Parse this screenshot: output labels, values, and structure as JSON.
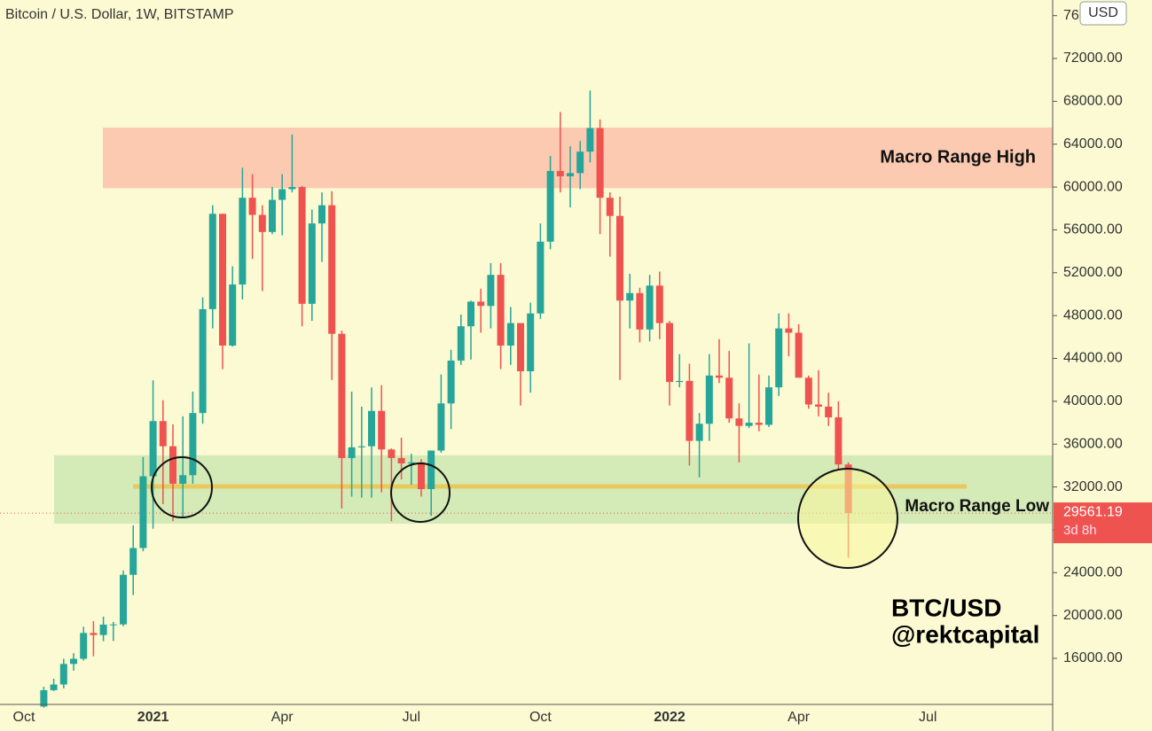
{
  "chart_data": {
    "type": "candlestick",
    "title": "Bitcoin / U.S. Dollar, 1W, BITSTAMP",
    "currency": "USD",
    "categories": [
      "Oct",
      null,
      null,
      null,
      null,
      null,
      null,
      null,
      null,
      null,
      null,
      null,
      null,
      "2021",
      null,
      null,
      null,
      null,
      null,
      null,
      null,
      null,
      null,
      null,
      null,
      null,
      "Apr",
      null,
      null,
      null,
      null,
      null,
      null,
      null,
      null,
      null,
      null,
      null,
      null,
      "Jul",
      null,
      null,
      null,
      null,
      null,
      null,
      null,
      null,
      null,
      null,
      null,
      null,
      "Oct",
      null,
      null,
      null,
      null,
      null,
      null,
      null,
      null,
      null,
      null,
      null,
      null,
      "2022",
      null,
      null,
      null,
      null,
      null,
      null,
      null,
      null,
      null,
      null,
      null,
      null,
      "Apr",
      null,
      null,
      null,
      null,
      null,
      null,
      null,
      null,
      null,
      null,
      null,
      null,
      "Jul"
    ],
    "open": [
      null,
      null,
      11500,
      13030,
      13560,
      15480,
      15960,
      18370,
      18180,
      19150,
      19170,
      23800,
      26300,
      33000,
      38150,
      35800,
      32300,
      33100,
      38900,
      48600,
      57500,
      45200,
      50900,
      59000,
      57400,
      55800,
      58800,
      59800,
      60000,
      49100,
      56600,
      58300,
      46300,
      34700,
      35700,
      35800,
      39100,
      35500,
      34700,
      34200,
      34300,
      31800,
      35400,
      39800,
      43800,
      47000,
      49300,
      48900,
      51800,
      45200,
      47300,
      42800,
      48200,
      54900,
      61500,
      61000,
      61300,
      63300,
      65500,
      59000,
      57300,
      49400,
      50100,
      46700,
      50800,
      47300,
      41800,
      41900,
      36300,
      37900,
      42400,
      42200,
      38400,
      37700,
      38000,
      37800,
      41300,
      46800,
      46400,
      42200,
      39700,
      39500,
      38500,
      34100,
      null,
      null,
      null,
      null,
      null,
      null,
      null,
      null
    ],
    "high": [
      null,
      null,
      13350,
      14100,
      15960,
      16480,
      18950,
      19480,
      19900,
      19400,
      24200,
      28400,
      34800,
      41950,
      40100,
      37850,
      38600,
      40900,
      49700,
      58300,
      57500,
      52600,
      61800,
      61200,
      58300,
      60000,
      61200,
      64900,
      60100,
      57900,
      59500,
      59600,
      46600,
      40900,
      39500,
      41300,
      41500,
      35600,
      36600,
      35100,
      34600,
      35400,
      42500,
      44800,
      48100,
      49400,
      50500,
      52900,
      52900,
      48800,
      47300,
      49200,
      56600,
      62900,
      67000,
      63800,
      64300,
      69000,
      66300,
      59500,
      59100,
      51900,
      50600,
      51800,
      52100,
      47500,
      44400,
      43500,
      38900,
      44400,
      45800,
      44700,
      39800,
      45400,
      42500,
      42400,
      48200,
      48200,
      47200,
      42400,
      42900,
      40800,
      40000,
      34300,
      null,
      null,
      null,
      null,
      null,
      null,
      null,
      null
    ],
    "low": [
      null,
      null,
      11400,
      12950,
      13200,
      14850,
      15800,
      16200,
      17600,
      17620,
      19000,
      21900,
      26000,
      28100,
      30400,
      28800,
      29200,
      32300,
      37900,
      46800,
      43000,
      45100,
      49500,
      53300,
      50300,
      55600,
      55500,
      59500,
      47000,
      47500,
      53000,
      42000,
      30000,
      31100,
      31000,
      31000,
      31500,
      28800,
      32700,
      32200,
      31100,
      29300,
      35200,
      37400,
      43400,
      43900,
      46400,
      46800,
      43000,
      43400,
      39600,
      40800,
      47700,
      54200,
      59500,
      58100,
      59800,
      62300,
      55600,
      53500,
      42000,
      46800,
      45500,
      45600,
      45800,
      39600,
      41300,
      34000,
      32900,
      36300,
      41700,
      38000,
      34300,
      37500,
      37200,
      37600,
      40500,
      44200,
      42200,
      39300,
      38600,
      37700,
      33700,
      25400,
      null,
      null,
      null,
      null,
      null,
      null,
      null,
      null
    ],
    "close": [
      null,
      null,
      13030,
      13560,
      15480,
      15960,
      18370,
      18180,
      19150,
      19170,
      23800,
      26300,
      33000,
      38150,
      35800,
      32300,
      33100,
      38900,
      48600,
      57500,
      45200,
      50900,
      59000,
      57400,
      55800,
      58800,
      59800,
      60000,
      49100,
      56600,
      58300,
      46300,
      34700,
      35700,
      35800,
      39100,
      35500,
      34700,
      34200,
      34300,
      31800,
      35400,
      39800,
      43800,
      47000,
      49300,
      48900,
      51800,
      45200,
      47300,
      42800,
      48200,
      54900,
      61500,
      61000,
      61300,
      63300,
      65500,
      59000,
      57300,
      49400,
      50100,
      46700,
      50800,
      47300,
      41800,
      41900,
      36300,
      37900,
      42400,
      42200,
      38400,
      37700,
      38000,
      37800,
      41300,
      46800,
      46400,
      42200,
      39700,
      39500,
      38500,
      34100,
      29561.19,
      null,
      null,
      null,
      null,
      null,
      null,
      null,
      null
    ],
    "up_color": "#26a69a",
    "down_color": "#ef5350",
    "ylim": [
      11700,
      77460
    ],
    "yticks": [
      {
        "value": 16000,
        "label": "16000.00"
      },
      {
        "value": 20000,
        "label": "20000.00"
      },
      {
        "value": 24000,
        "label": "24000.00"
      },
      {
        "value": 28000,
        "label": "28000.00"
      },
      {
        "value": 32000,
        "label": "32000.00"
      },
      {
        "value": 36000,
        "label": "36000.00"
      },
      {
        "value": 40000,
        "label": "40000.00"
      },
      {
        "value": 44000,
        "label": "44000.00"
      },
      {
        "value": 48000,
        "label": "48000.00"
      },
      {
        "value": 52000,
        "label": "52000.00"
      },
      {
        "value": 56000,
        "label": "56000.00"
      },
      {
        "value": 60000,
        "label": "60000.00"
      },
      {
        "value": 64000,
        "label": "64000.00"
      },
      {
        "value": 68000,
        "label": "68000.00"
      },
      {
        "value": 72000,
        "label": "72000.00"
      },
      {
        "value": 76000,
        "label": "76000.00"
      }
    ],
    "zones": [
      {
        "label": "Macro Range High",
        "range": [
          59900,
          65550
        ],
        "color": "#fbc4ad"
      },
      {
        "label": "Macro Range Low",
        "range": [
          28580,
          34950
        ],
        "color": "#cfe8b4"
      }
    ],
    "level": 32050,
    "level_color": "#e8c95e",
    "countdown": "3d 8h",
    "annotations": [
      "BTC/USD",
      "@rektcapital"
    ]
  }
}
